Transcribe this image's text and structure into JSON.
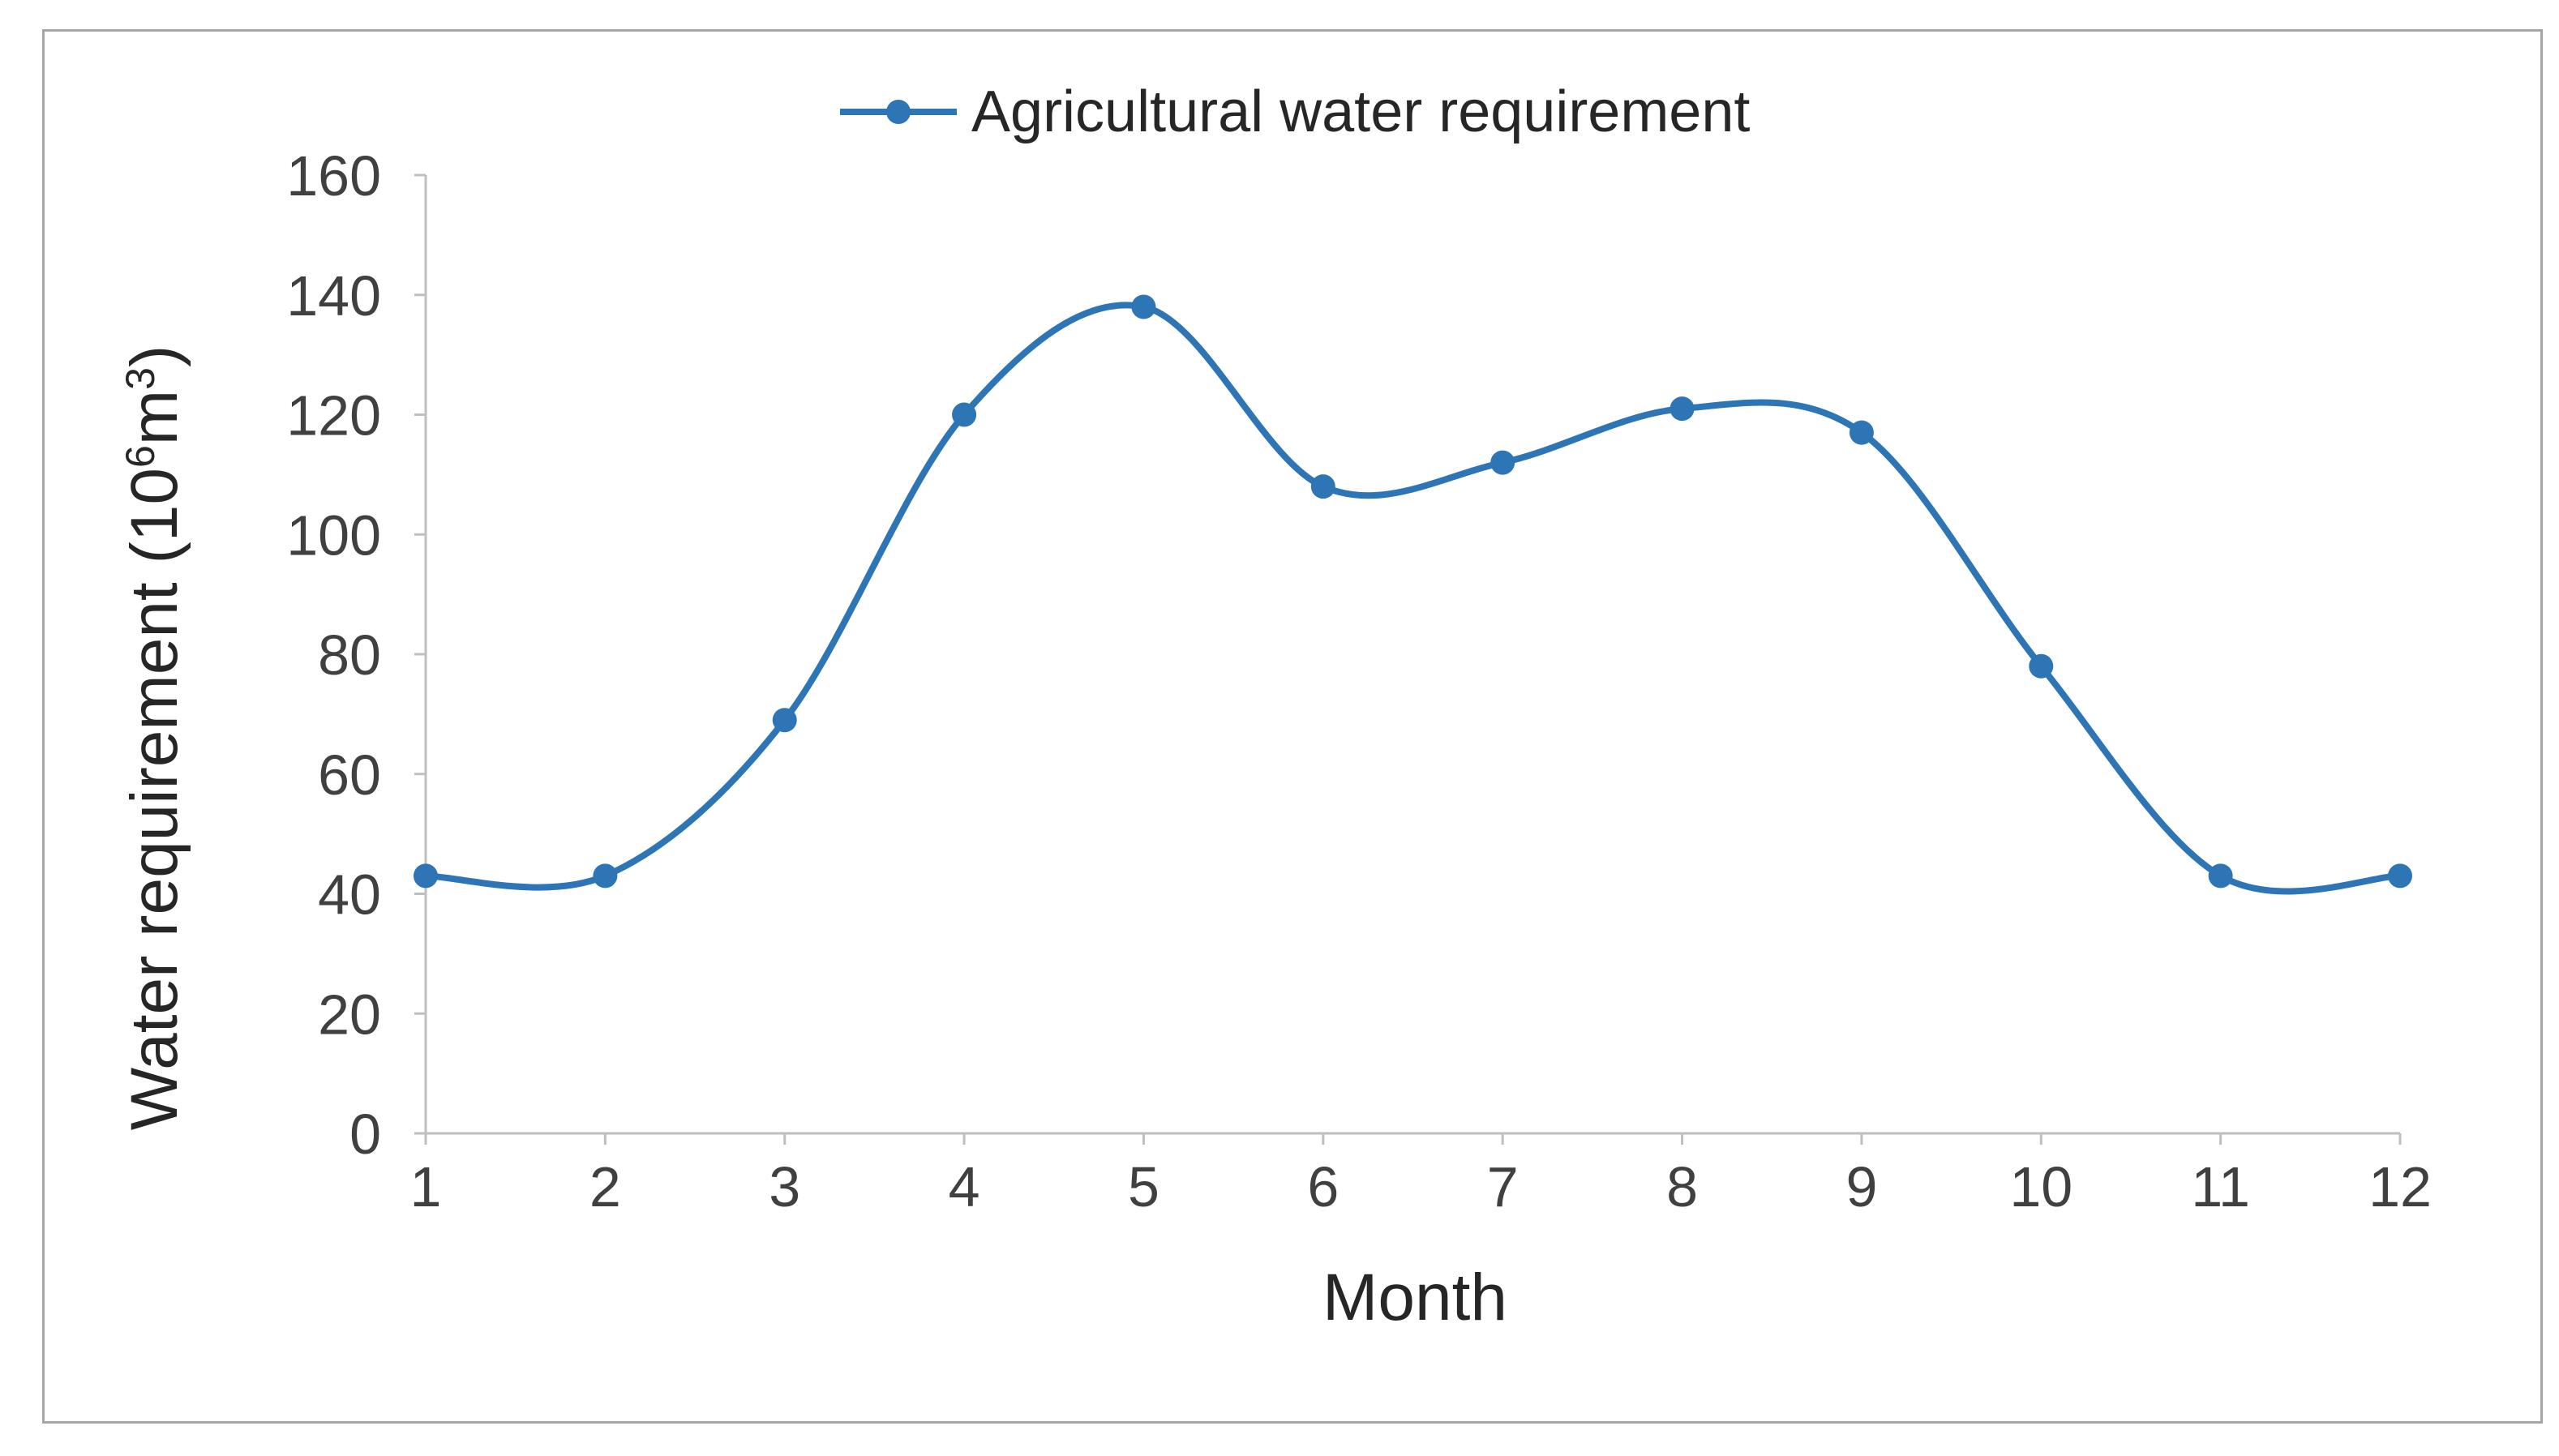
{
  "chart_data": {
    "type": "line",
    "title": "",
    "xlabel": "Month",
    "ylabel_main": "Water requirement (10",
    "ylabel_sup1": "6",
    "ylabel_mid": "m",
    "ylabel_sup2": "3",
    "ylabel_end": ")",
    "categories": [
      "1",
      "2",
      "3",
      "4",
      "5",
      "6",
      "7",
      "8",
      "9",
      "10",
      "11",
      "12"
    ],
    "series": [
      {
        "name": "Agricultural water requirement",
        "values": [
          43,
          43,
          69,
          120,
          138,
          108,
          112,
          121,
          117,
          78,
          43,
          43
        ]
      }
    ],
    "ylim": [
      0,
      160
    ],
    "yticks": [
      "0",
      "20",
      "40",
      "60",
      "80",
      "100",
      "120",
      "140",
      "160"
    ],
    "grid": false,
    "legend_position": "top-center",
    "smooth": true,
    "colors": {
      "series": "#2e75b6",
      "axis": "#bfbfbf",
      "frame": "#a6a6a6"
    }
  }
}
